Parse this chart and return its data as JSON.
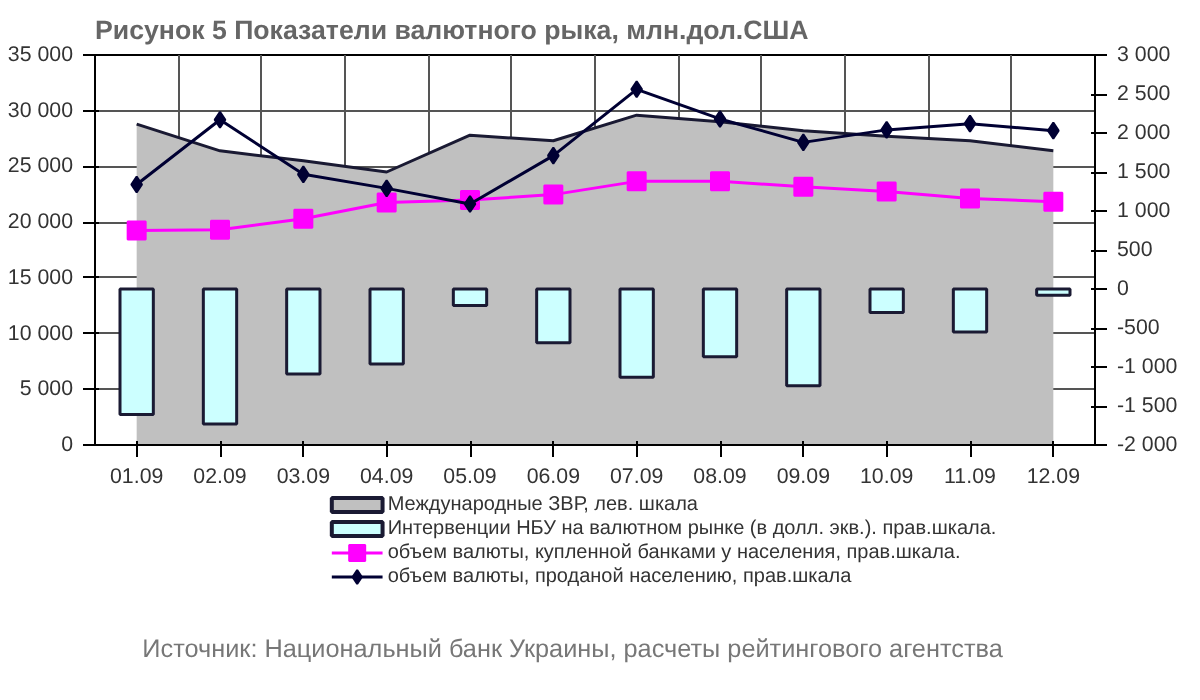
{
  "chart_data": {
    "type": "line",
    "title": "Рисунок 5 Показатели валютного рыка, млн.дол.США",
    "categories": [
      "01.09",
      "02.09",
      "03.09",
      "04.09",
      "05.09",
      "06.09",
      "07.09",
      "08.09",
      "09.09",
      "10.09",
      "11.09",
      "12.09"
    ],
    "series": [
      {
        "name": "Международные ЗВР, лев. шкала",
        "type": "area",
        "color": "#c0c0c0",
        "values": [
          28800,
          26400,
          25500,
          24500,
          27800,
          27300,
          29600,
          29000,
          28200,
          27700,
          27300,
          26400
        ]
      },
      {
        "name": "Интервенции НБУ на валютном рынке (в долл. экв.). прав.шкала.",
        "type": "bar",
        "axis": "y2",
        "color": "#ccffff",
        "values": [
          -1610,
          -1730,
          -1090,
          -960,
          -210,
          -690,
          -1130,
          -870,
          -1240,
          -300,
          -550,
          -80
        ]
      },
      {
        "name": "объем валюты, купленной банками у населения, прав.шкала.",
        "axis": "y2",
        "color": "#ff00ff",
        "marker": "square",
        "values": [
          750,
          760,
          900,
          1110,
          1140,
          1210,
          1380,
          1380,
          1310,
          1250,
          1160,
          1120
        ]
      },
      {
        "name": "объем валюты, проданой населению, прав.шкала",
        "axis": "y2",
        "color": "#000033",
        "marker": "diamond",
        "values": [
          1340,
          2170,
          1470,
          1290,
          1090,
          1710,
          2560,
          2180,
          1880,
          2040,
          2120,
          2030
        ]
      }
    ],
    "ylim": [
      0,
      35000
    ],
    "yticks": [
      {
        "value": 0,
        "label": "0"
      },
      {
        "value": 5000,
        "label": "5 000"
      },
      {
        "value": 10000,
        "label": "10 000"
      },
      {
        "value": 15000,
        "label": "15 000"
      },
      {
        "value": 20000,
        "label": "20 000"
      },
      {
        "value": 25000,
        "label": "25 000"
      },
      {
        "value": 30000,
        "label": "30 000"
      },
      {
        "value": 35000,
        "label": "35 000"
      }
    ],
    "y2lim": [
      -2000,
      3000
    ],
    "y2ticks": [
      {
        "value": -2000,
        "label": "-2 000"
      },
      {
        "value": -1500,
        "label": "-1 500"
      },
      {
        "value": -1000,
        "label": "-1 000"
      },
      {
        "value": -500,
        "label": "-500"
      },
      {
        "value": 0,
        "label": "0"
      },
      {
        "value": 500,
        "label": "500"
      },
      {
        "value": 1000,
        "label": "1 000"
      },
      {
        "value": 1500,
        "label": "1 500"
      },
      {
        "value": 2000,
        "label": "2 000"
      },
      {
        "value": 2500,
        "label": "2 500"
      },
      {
        "value": 3000,
        "label": "3 000"
      }
    ],
    "grid": true,
    "legend": "bottom",
    "annotations": [
      "Источник: Национальный банк Украины, расчеты рейтингового агентства"
    ]
  }
}
